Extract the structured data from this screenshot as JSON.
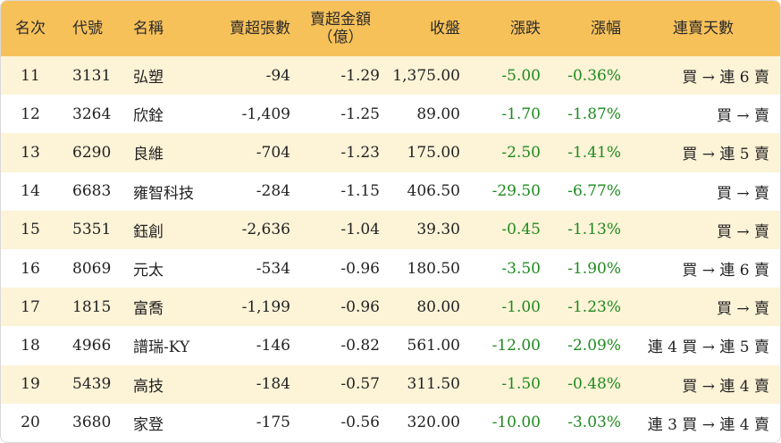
{
  "headers": {
    "rank": "名次",
    "code": "代號",
    "name": "名稱",
    "sell_lots": "賣超張數",
    "sell_amount_line1": "賣超金額",
    "sell_amount_line2": "（億）",
    "close": "收盤",
    "change": "漲跌",
    "change_pct": "漲幅",
    "streak": "連賣天數"
  },
  "rows": [
    {
      "rank": "11",
      "code": "3131",
      "name": "弘塑",
      "sell_lots": "-94",
      "sell_amount": "-1.29",
      "close": "1,375.00",
      "change": "-5.00",
      "change_pct": "-0.36%",
      "streak": "買 → 連 6 賣"
    },
    {
      "rank": "12",
      "code": "3264",
      "name": "欣銓",
      "sell_lots": "-1,409",
      "sell_amount": "-1.25",
      "close": "89.00",
      "change": "-1.70",
      "change_pct": "-1.87%",
      "streak": "買 → 賣"
    },
    {
      "rank": "13",
      "code": "6290",
      "name": "良維",
      "sell_lots": "-704",
      "sell_amount": "-1.23",
      "close": "175.00",
      "change": "-2.50",
      "change_pct": "-1.41%",
      "streak": "買 → 連 5 賣"
    },
    {
      "rank": "14",
      "code": "6683",
      "name": "雍智科技",
      "sell_lots": "-284",
      "sell_amount": "-1.15",
      "close": "406.50",
      "change": "-29.50",
      "change_pct": "-6.77%",
      "streak": "買 → 賣"
    },
    {
      "rank": "15",
      "code": "5351",
      "name": "鈺創",
      "sell_lots": "-2,636",
      "sell_amount": "-1.04",
      "close": "39.30",
      "change": "-0.45",
      "change_pct": "-1.13%",
      "streak": "買 → 賣"
    },
    {
      "rank": "16",
      "code": "8069",
      "name": "元太",
      "sell_lots": "-534",
      "sell_amount": "-0.96",
      "close": "180.50",
      "change": "-3.50",
      "change_pct": "-1.90%",
      "streak": "買 → 連 6 賣"
    },
    {
      "rank": "17",
      "code": "1815",
      "name": "富喬",
      "sell_lots": "-1,199",
      "sell_amount": "-0.96",
      "close": "80.00",
      "change": "-1.00",
      "change_pct": "-1.23%",
      "streak": "買 → 賣"
    },
    {
      "rank": "18",
      "code": "4966",
      "name": "譜瑞-KY",
      "sell_lots": "-146",
      "sell_amount": "-0.82",
      "close": "561.00",
      "change": "-12.00",
      "change_pct": "-2.09%",
      "streak": "連 4 買 → 連 5 賣"
    },
    {
      "rank": "19",
      "code": "5439",
      "name": "高技",
      "sell_lots": "-184",
      "sell_amount": "-0.57",
      "close": "311.50",
      "change": "-1.50",
      "change_pct": "-0.48%",
      "streak": "買 → 連 4 賣"
    },
    {
      "rank": "20",
      "code": "3680",
      "name": "家登",
      "sell_lots": "-175",
      "sell_amount": "-0.56",
      "close": "320.00",
      "change": "-10.00",
      "change_pct": "-3.03%",
      "streak": "連 3 買 → 連 4 賣"
    }
  ],
  "colors": {
    "header_bg": "#f7c15a",
    "stripe_bg": "#fdf3d7",
    "negative_change": "#1e8a1e"
  }
}
